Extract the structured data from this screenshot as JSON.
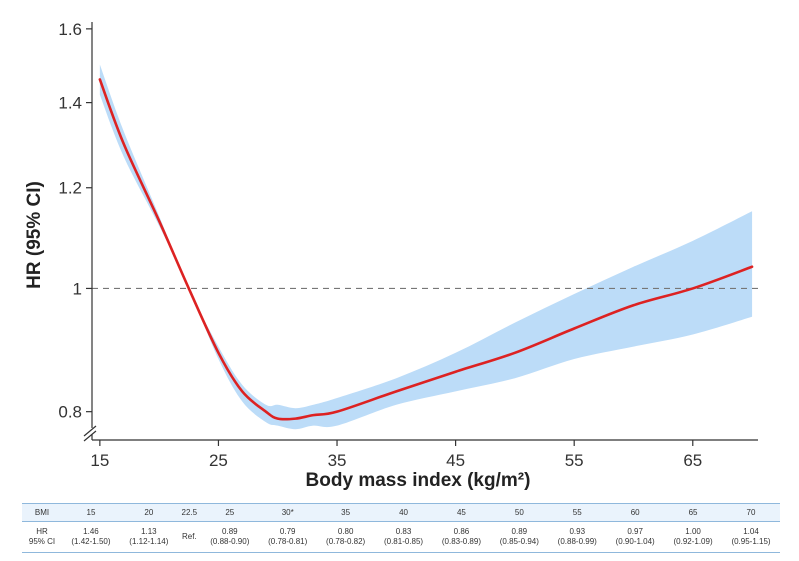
{
  "chart_data": {
    "type": "line",
    "xlabel": "Body mass index (kg/m²)",
    "ylabel": "HR (95% CI)",
    "xlim": [
      14,
      70.5
    ],
    "ylim": [
      0.76,
      1.62
    ],
    "y_scale": "log",
    "x_ticks": [
      {
        "value": 15,
        "label": "15"
      },
      {
        "value": 25,
        "label": "25"
      },
      {
        "value": 35,
        "label": "35"
      },
      {
        "value": 45,
        "label": "45"
      },
      {
        "value": 55,
        "label": "55"
      },
      {
        "value": 65,
        "label": "65"
      }
    ],
    "y_ticks": [
      {
        "value": 0.8,
        "label": "0.8"
      },
      {
        "value": 1.0,
        "label": "1"
      },
      {
        "value": 1.2,
        "label": "1.2"
      },
      {
        "value": 1.4,
        "label": "1.4"
      },
      {
        "value": 1.6,
        "label": "1.6"
      }
    ],
    "reference_line": 1.0,
    "axis_break": true,
    "colors": {
      "line": "#dd2222",
      "band": "#bcdcf8",
      "reference": "#777777"
    },
    "series": [
      {
        "x": [
          15,
          17,
          20,
          22.5,
          25,
          27,
          29,
          30,
          31.5,
          33,
          35,
          40,
          45,
          50,
          55,
          60,
          65,
          70
        ],
        "y": [
          1.46,
          1.3,
          1.13,
          1.0,
          0.89,
          0.83,
          0.8,
          0.79,
          0.79,
          0.795,
          0.8,
          0.83,
          0.86,
          0.89,
          0.93,
          0.97,
          1.0,
          1.04
        ],
        "lower": [
          1.42,
          1.27,
          1.12,
          1.0,
          0.88,
          0.815,
          0.785,
          0.78,
          0.775,
          0.78,
          0.78,
          0.81,
          0.83,
          0.85,
          0.88,
          0.9,
          0.92,
          0.95
        ],
        "upper": [
          1.5,
          1.33,
          1.14,
          1.0,
          0.9,
          0.84,
          0.81,
          0.81,
          0.805,
          0.81,
          0.82,
          0.85,
          0.89,
          0.94,
          0.99,
          1.04,
          1.09,
          1.15
        ]
      }
    ]
  },
  "table": {
    "row1_label": "BMI",
    "row2_label_line1": "HR",
    "row2_label_line2": "95% CI",
    "columns": [
      {
        "bmi": "15",
        "hr": "1.46",
        "ci": "(1.42-1.50)"
      },
      {
        "bmi": "20",
        "hr": "1.13",
        "ci": "(1.12-1.14)"
      },
      {
        "bmi": "22.5",
        "hr": "Ref.",
        "ci": ""
      },
      {
        "bmi": "25",
        "hr": "0.89",
        "ci": "(0.88-0.90)"
      },
      {
        "bmi": "30*",
        "hr": "0.79",
        "ci": "(0.78-0.81)"
      },
      {
        "bmi": "35",
        "hr": "0.80",
        "ci": "(0.78-0.82)"
      },
      {
        "bmi": "40",
        "hr": "0.83",
        "ci": "(0.81-0.85)"
      },
      {
        "bmi": "45",
        "hr": "0.86",
        "ci": "(0.83-0.89)"
      },
      {
        "bmi": "50",
        "hr": "0.89",
        "ci": "(0.85-0.94)"
      },
      {
        "bmi": "55",
        "hr": "0.93",
        "ci": "(0.88-0.99)"
      },
      {
        "bmi": "60",
        "hr": "0.97",
        "ci": "(0.90-1.04)"
      },
      {
        "bmi": "65",
        "hr": "1.00",
        "ci": "(0.92-1.09)"
      },
      {
        "bmi": "70",
        "hr": "1.04",
        "ci": "(0.95-1.15)"
      }
    ]
  }
}
